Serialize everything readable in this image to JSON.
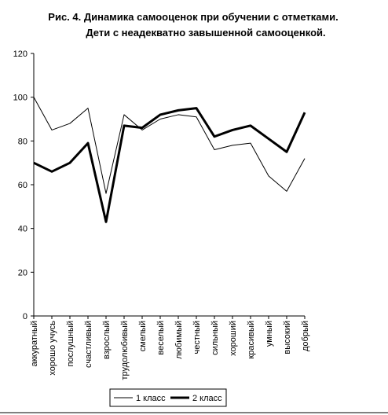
{
  "chart_data": {
    "type": "line",
    "title": "Рис. 4. Динамика самооценок при обучении с отметками.",
    "subtitle": "Дети с неадекватно завышенной самооценкой.",
    "categories": [
      "аккуратный",
      "хорошо учусь",
      "послушный",
      "счастливый",
      "взрослый",
      "трудолюбивый",
      "смелый",
      "веселый",
      "любимый",
      "честный",
      "сильный",
      "хороший",
      "красивый",
      "умный",
      "высокий",
      "добрый"
    ],
    "series": [
      {
        "name": "1 класс",
        "color": "#000000",
        "values": [
          100,
          85,
          88,
          95,
          56,
          92,
          85,
          90,
          92,
          91,
          76,
          78,
          79,
          64,
          57,
          72
        ]
      },
      {
        "name": "2 класс",
        "color": "#000000",
        "values": [
          70,
          66,
          70,
          79,
          43,
          87,
          86,
          92,
          94,
          95,
          82,
          85,
          87,
          81,
          75,
          93
        ]
      }
    ],
    "ylim": [
      0,
      120
    ],
    "yticks": [
      0,
      20,
      40,
      60,
      80,
      100,
      120
    ]
  }
}
